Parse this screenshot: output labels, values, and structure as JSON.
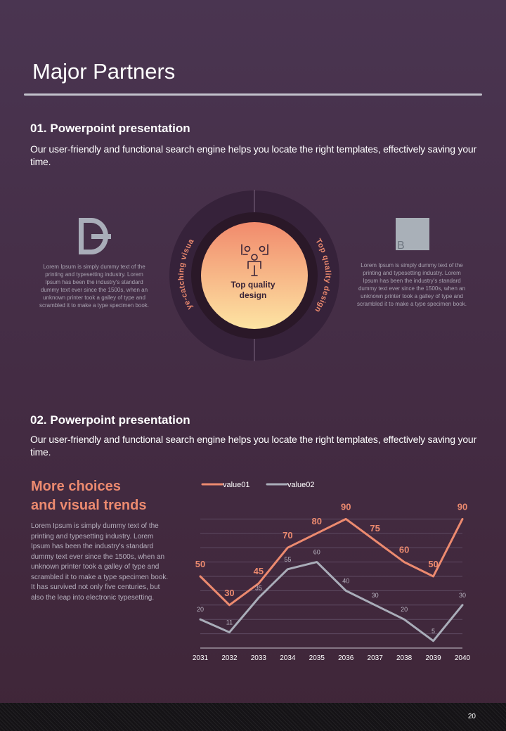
{
  "title": "Major Partners",
  "section1": {
    "heading": "01. Powerpoint presentation",
    "text": "Our user-friendly and functional search engine helps you locate the right templates, effectively saving your time."
  },
  "diagram": {
    "left_text": "Lorem Ipsum  is simply dummy text of the printing and typesetting  industry. Lorem Ipsum  has been the industry's standard dummy text ever since the 1500s, when an unknown printer took a galley of type  and scrambled it to make a type specimen book.",
    "right_text": "Lorem Ipsum  is simply dummy text of the printing and typesetting  industry. Lorem Ipsum  has been the industry's standard dummy text ever since the 1500s, when an unknown printer took a galley of type  and scrambled it to make a type specimen book.",
    "right_logo_letter": "B",
    "center_line1": "Top quality",
    "center_line2": "design",
    "arc_left": "Eye-catching visual",
    "arc_right": "Top quality design",
    "left_logo_icon": "d-logo-icon",
    "center_icon": "people-network-icon"
  },
  "section2": {
    "heading": "02. Powerpoint presentation",
    "text": "Our user-friendly and functional search engine helps you locate the right templates, effectively saving your time."
  },
  "side": {
    "title_line1": "More choices",
    "title_line2": "and visual trends",
    "text": "Lorem Ipsum is simply dummy text of the printing and typesetting industry. Lorem Ipsum has been the industry's standard dummy text ever since the 1500s, when an unknown printer took a galley of type and scrambled it to make a type specimen book. It has survived not only five centuries, but also the leap into electronic typesetting."
  },
  "chart_data": {
    "type": "line",
    "x": [
      "2031",
      "2032",
      "2033",
      "2034",
      "2035",
      "2036",
      "2037",
      "2038",
      "2039",
      "2040"
    ],
    "series": [
      {
        "name": "value01",
        "values": [
          50,
          30,
          45,
          70,
          80,
          90,
          75,
          60,
          50,
          90
        ],
        "color": "#ec8a6f"
      },
      {
        "name": "value02",
        "values": [
          20,
          11,
          35,
          55,
          60,
          40,
          30,
          20,
          5,
          30
        ],
        "color": "#a9adb9"
      }
    ],
    "ylim": [
      0,
      100
    ],
    "grid": true,
    "legend": "top-left"
  },
  "colors": {
    "accent": "#ec8a6f",
    "gray": "#a9adb9",
    "background": "#452d46"
  },
  "page_number": "20"
}
